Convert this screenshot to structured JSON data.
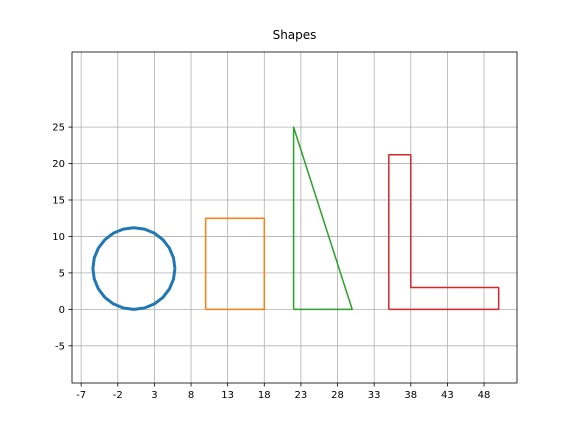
{
  "chart_data": {
    "type": "line",
    "title": "Shapes",
    "xlim": [
      -8.25,
      52.5
    ],
    "ylim": [
      -10.1,
      35.3
    ],
    "xticks": [
      -7,
      -2,
      3,
      8,
      13,
      18,
      23,
      28,
      33,
      38,
      43,
      48
    ],
    "yticks": [
      -5,
      0,
      5,
      10,
      15,
      20,
      25
    ],
    "grid": true,
    "series": [
      {
        "color": "#1f77b4",
        "linewidth": 3,
        "x": [
          5.8,
          5.61,
          5.05,
          4.16,
          3.0,
          1.65,
          0.2,
          -1.25,
          -2.6,
          -3.76,
          -4.65,
          -5.21,
          -5.4,
          -5.21,
          -4.65,
          -3.76,
          -2.6,
          -1.25,
          0.2,
          1.65,
          3.0,
          4.16,
          5.05,
          5.61,
          5.8
        ],
        "values": [
          5.6,
          7.05,
          8.4,
          9.56,
          10.45,
          11.01,
          11.2,
          11.01,
          10.45,
          9.56,
          8.4,
          7.05,
          5.6,
          4.15,
          2.8,
          1.64,
          0.75,
          0.19,
          0,
          0.19,
          0.75,
          1.64,
          2.8,
          4.15,
          5.6
        ]
      },
      {
        "color": "#ff7f0e",
        "linewidth": 1.5,
        "x": [
          10,
          18,
          18,
          10,
          10
        ],
        "values": [
          0,
          0,
          12.5,
          12.5,
          0
        ]
      },
      {
        "color": "#2ca02c",
        "linewidth": 1.5,
        "x": [
          22,
          30,
          22,
          22
        ],
        "values": [
          0,
          0,
          25,
          0
        ]
      },
      {
        "color": "#d62728",
        "linewidth": 1.5,
        "x": [
          35,
          50,
          50,
          38,
          38,
          35,
          35
        ],
        "values": [
          0,
          0,
          3,
          3,
          21.2,
          21.2,
          0
        ]
      }
    ]
  }
}
